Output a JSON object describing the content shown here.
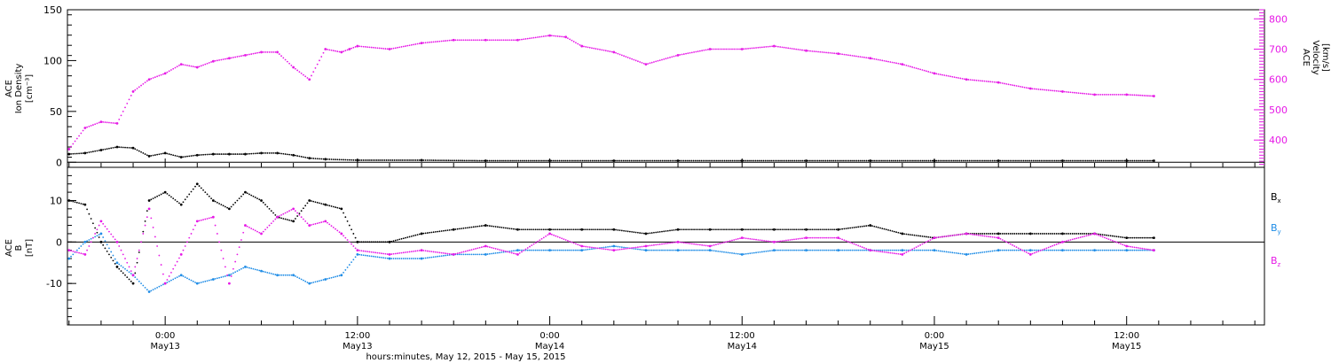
{
  "colors": {
    "ink": "#000000",
    "magenta": "#e619e6",
    "blue": "#1e8ce6"
  },
  "x_axis": {
    "tick_times": [
      "0:00",
      "12:00",
      "0:00",
      "12:00",
      "0:00",
      "12:00"
    ],
    "tick_dates": [
      "May13",
      "May13",
      "May14",
      "May14",
      "May15",
      "May15"
    ],
    "tick_hours": [
      24,
      36,
      48,
      60,
      72,
      84
    ],
    "title": "hours:minutes, May 12, 2015 - May 15, 2015"
  },
  "chart_data": [
    {
      "type": "scatter",
      "panel": "top",
      "x_unit": "hours since May 12, 2015 00:00",
      "xlim": [
        17.9,
        92.6
      ],
      "left_axis": {
        "label_lines": [
          "ACE",
          "Ion Density",
          "[cm⁻³]"
        ],
        "ylim": [
          -5,
          150
        ],
        "ticks": [
          0,
          50,
          100,
          150
        ]
      },
      "right_axis": {
        "label_lines": [
          "ACE",
          "Velocity",
          "[km/s]"
        ],
        "ylim": [
          310,
          830
        ],
        "ticks": [
          400,
          500,
          600,
          700,
          800
        ]
      },
      "series": [
        {
          "key": "velocity",
          "axis": "right",
          "color": "magenta",
          "x": [
            18,
            19,
            20,
            21,
            22,
            23,
            24,
            25,
            26,
            27,
            28,
            29,
            30,
            31,
            32,
            33,
            34,
            35,
            35.5,
            36,
            38,
            40,
            42,
            44,
            46,
            48,
            49,
            50,
            52,
            54,
            56,
            58,
            60,
            62,
            64,
            66,
            68,
            70,
            72,
            74,
            76,
            78,
            80,
            82,
            84,
            85.7
          ],
          "y": [
            370,
            440,
            460,
            455,
            560,
            600,
            620,
            650,
            640,
            660,
            670,
            680,
            690,
            690,
            640,
            600,
            700,
            690,
            700,
            710,
            700,
            720,
            730,
            730,
            730,
            745,
            740,
            710,
            690,
            650,
            680,
            700,
            700,
            710,
            695,
            685,
            670,
            650,
            620,
            600,
            590,
            570,
            560,
            550,
            550,
            545
          ]
        },
        {
          "key": "density",
          "axis": "left",
          "color": "ink",
          "x": [
            18,
            19,
            20,
            21,
            22,
            23,
            24,
            25,
            26,
            27,
            28,
            29,
            30,
            31,
            32,
            33,
            34,
            36,
            40,
            44,
            48,
            52,
            56,
            60,
            64,
            68,
            72,
            76,
            80,
            84,
            85.7
          ],
          "y": [
            8,
            9,
            12,
            15,
            14,
            6,
            9,
            5,
            7,
            8,
            8,
            8,
            9,
            9,
            7,
            4,
            3,
            2,
            2,
            1.5,
            1.5,
            1.5,
            1.5,
            1.5,
            1.5,
            1.5,
            1.5,
            1.5,
            1.5,
            1.5,
            1.5
          ]
        }
      ]
    },
    {
      "type": "scatter",
      "panel": "bottom",
      "x_unit": "hours since May 12, 2015 00:00",
      "xlim": [
        17.9,
        92.6
      ],
      "left_axis": {
        "label_lines": [
          "ACE",
          "B",
          "[nT]"
        ],
        "ylim": [
          -20,
          18
        ],
        "ticks": [
          -10,
          0,
          10
        ]
      },
      "legend": [
        {
          "label": "Bx",
          "base": "B",
          "sub": "x",
          "color": "ink"
        },
        {
          "label": "By",
          "base": "B",
          "sub": "y",
          "color": "blue"
        },
        {
          "label": "Bz",
          "base": "B",
          "sub": "z",
          "color": "magenta"
        }
      ],
      "series": [
        {
          "key": "bx",
          "color": "ink",
          "x": [
            18,
            19,
            20,
            21,
            22,
            23,
            24,
            25,
            26,
            27,
            28,
            29,
            30,
            31,
            32,
            33,
            34,
            35,
            36,
            38,
            40,
            42,
            44,
            46,
            48,
            50,
            52,
            54,
            56,
            58,
            60,
            62,
            64,
            66,
            68,
            70,
            72,
            74,
            76,
            78,
            80,
            82,
            84,
            85.7
          ],
          "y": [
            10,
            9,
            0,
            -6,
            -10,
            10,
            12,
            9,
            14,
            10,
            8,
            12,
            10,
            6,
            5,
            10,
            9,
            8,
            0,
            0,
            2,
            3,
            4,
            3,
            3,
            3,
            3,
            2,
            3,
            3,
            3,
            3,
            3,
            3,
            4,
            2,
            1,
            2,
            2,
            2,
            2,
            2,
            1,
            1
          ]
        },
        {
          "key": "by",
          "color": "blue",
          "x": [
            18,
            19,
            20,
            21,
            22,
            23,
            24,
            25,
            26,
            27,
            28,
            29,
            30,
            31,
            32,
            33,
            34,
            35,
            36,
            38,
            40,
            42,
            44,
            46,
            48,
            50,
            52,
            54,
            56,
            58,
            60,
            62,
            64,
            66,
            68,
            70,
            72,
            74,
            76,
            78,
            80,
            82,
            84,
            85.7
          ],
          "y": [
            -4,
            0,
            2,
            -5,
            -8,
            -12,
            -10,
            -8,
            -10,
            -9,
            -8,
            -6,
            -7,
            -8,
            -8,
            -10,
            -9,
            -8,
            -3,
            -4,
            -4,
            -3,
            -3,
            -2,
            -2,
            -2,
            -1,
            -2,
            -2,
            -2,
            -3,
            -2,
            -2,
            -2,
            -2,
            -2,
            -2,
            -3,
            -2,
            -2,
            -2,
            -2,
            -2,
            -2
          ]
        },
        {
          "key": "bz",
          "color": "magenta",
          "x": [
            18,
            19,
            20,
            21,
            22,
            23,
            24,
            25,
            26,
            27,
            28,
            29,
            30,
            31,
            32,
            33,
            34,
            35,
            36,
            38,
            40,
            42,
            44,
            46,
            48,
            50,
            52,
            54,
            56,
            58,
            60,
            62,
            64,
            66,
            68,
            70,
            72,
            74,
            76,
            78,
            80,
            82,
            84,
            85.7
          ],
          "y": [
            -2,
            -3,
            5,
            0,
            -8,
            8,
            -10,
            -3,
            5,
            6,
            -10,
            4,
            2,
            6,
            8,
            4,
            5,
            2,
            -2,
            -3,
            -2,
            -3,
            -1,
            -3,
            2,
            -1,
            -2,
            -1,
            0,
            -1,
            1,
            0,
            1,
            1,
            -2,
            -3,
            1,
            2,
            1,
            -3,
            0,
            2,
            -1,
            -2
          ]
        }
      ]
    }
  ]
}
